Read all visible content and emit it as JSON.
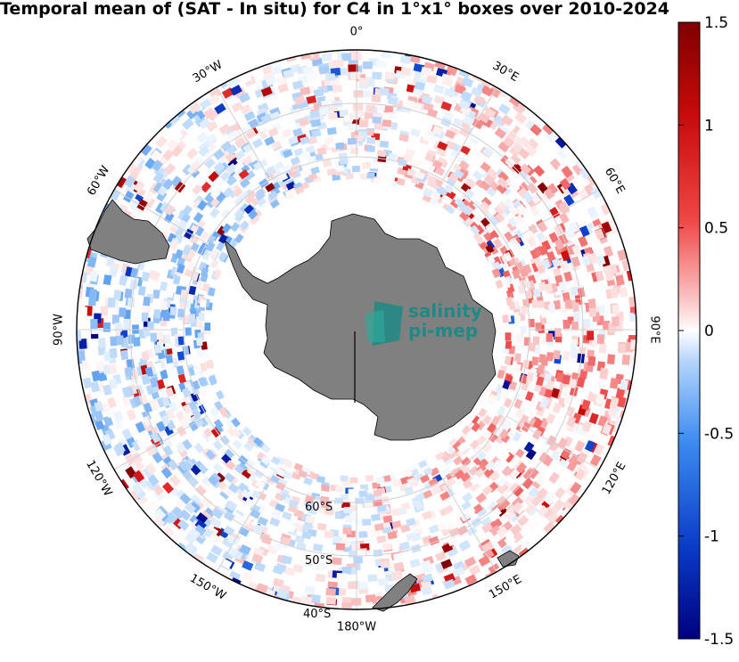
{
  "title": "Temporal mean of (SAT - In situ) for C4 in 1°x1° boxes over 2010-2024",
  "map": {
    "projection": "south-polar-stereographic",
    "latitude_range": [
      -40,
      -90
    ],
    "parallels": [
      "40°S",
      "50°S",
      "60°S"
    ],
    "meridians": [
      "180°W",
      "150°W",
      "120°W",
      "90°W",
      "60°W",
      "30°W",
      "0°",
      "30°E",
      "60°E",
      "90°E",
      "120°E",
      "150°E"
    ],
    "land_color": "#808080",
    "colormap": "diverging blue-white-red",
    "colormap_stops": [
      "#00007f",
      "#0a3cc8",
      "#3c8cf0",
      "#b4d4fa",
      "#ffffff",
      "#fac4c4",
      "#f04646",
      "#c80a0a",
      "#7f0000"
    ]
  },
  "colorbar": {
    "range": [
      -1.5,
      1.5
    ],
    "ticks": [
      "1.5",
      "1",
      "0.5",
      "0",
      "-0.5",
      "-1",
      "-1.5"
    ]
  },
  "logo": {
    "line1": "salinity",
    "line2": "pi-mep"
  }
}
